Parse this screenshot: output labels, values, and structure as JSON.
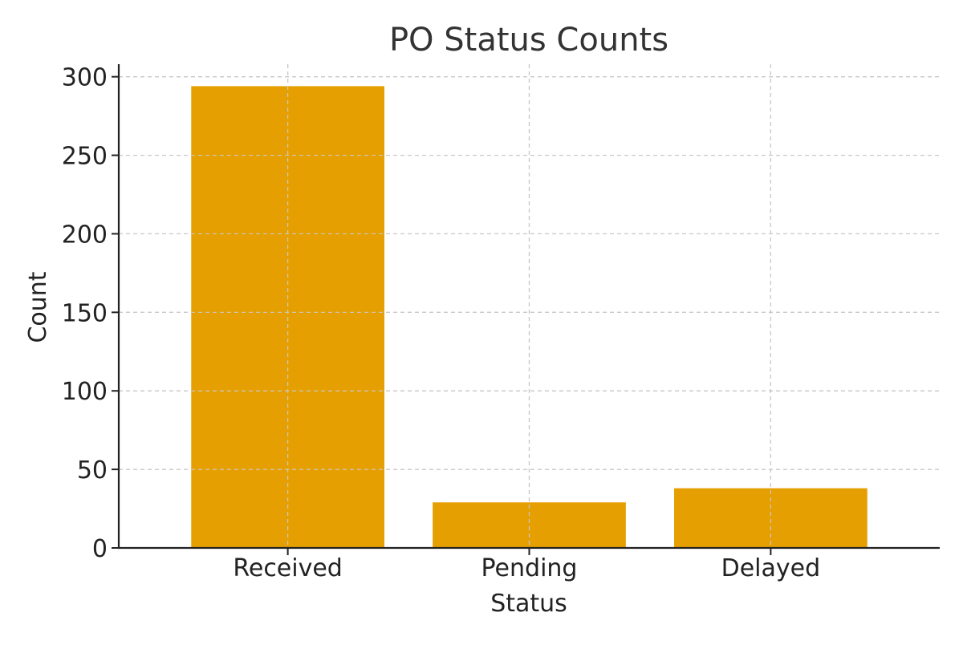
{
  "chart_data": {
    "type": "bar",
    "title": "PO Status Counts",
    "xlabel": "Status",
    "ylabel": "Count",
    "categories": [
      "Received",
      "Pending",
      "Delayed"
    ],
    "values": [
      294,
      29,
      38
    ],
    "ylim": [
      0,
      308
    ],
    "yticks": [
      0,
      50,
      100,
      150,
      200,
      250,
      300
    ],
    "grid": true,
    "legend": "none",
    "bar_color": "#E69F00"
  }
}
